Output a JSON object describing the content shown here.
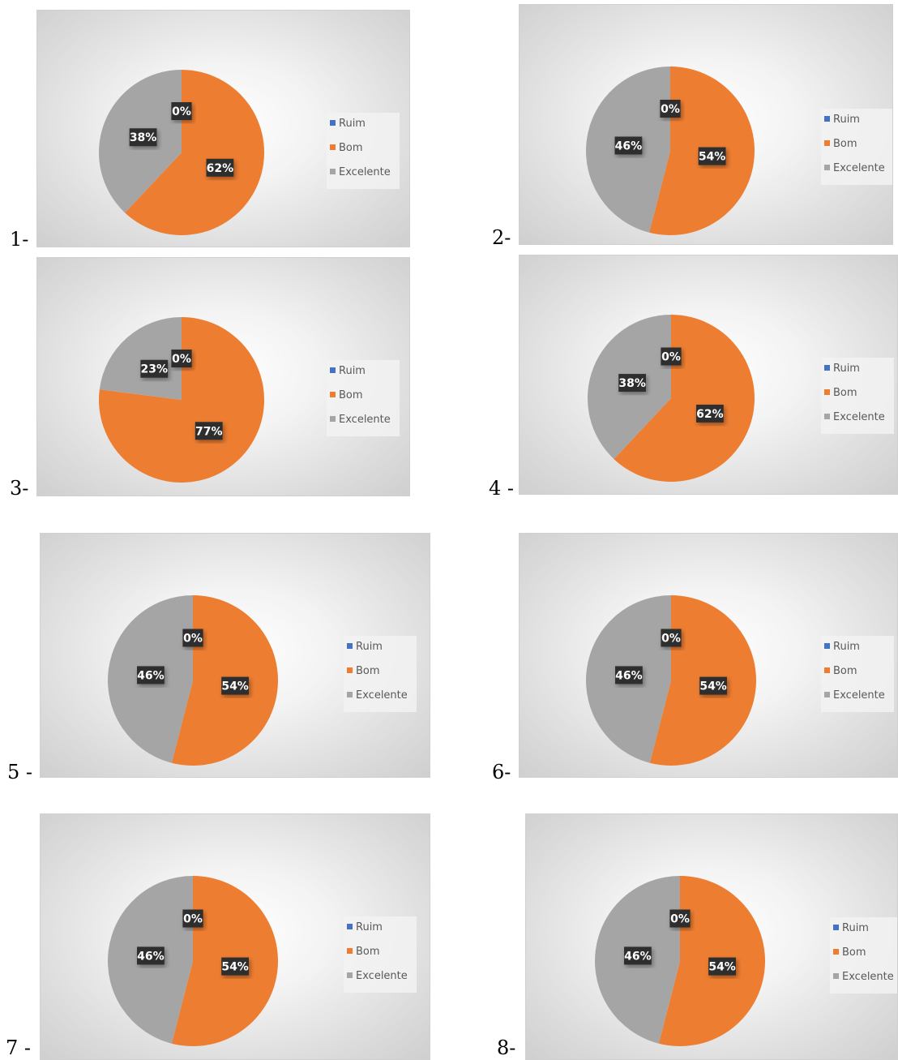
{
  "colors": {
    "Ruim": "#4472C4",
    "Bom": "#ED7D31",
    "Excelente": "#A5A5A5",
    "label_bg": "#2f2f2f"
  },
  "chart_data": [
    {
      "number_label": "1-",
      "type": "pie",
      "categories": [
        "Ruim",
        "Bom",
        "Excelente"
      ],
      "values": [
        0,
        62,
        38
      ],
      "labels": [
        "0%",
        "62%",
        "38%"
      ],
      "legend": [
        "Ruim",
        "Bom",
        "Excelente"
      ],
      "legend_position": "right"
    },
    {
      "number_label": "2-",
      "type": "pie",
      "categories": [
        "Ruim",
        "Bom",
        "Excelente"
      ],
      "values": [
        0,
        54,
        46
      ],
      "labels": [
        "0%",
        "54%",
        "46%"
      ],
      "legend": [
        "Ruim",
        "Bom",
        "Excelente"
      ],
      "legend_position": "right"
    },
    {
      "number_label": "3-",
      "type": "pie",
      "categories": [
        "Ruim",
        "Bom",
        "Excelente"
      ],
      "values": [
        0,
        77,
        23
      ],
      "labels": [
        "0%",
        "77%",
        "23%"
      ],
      "legend": [
        "Ruim",
        "Bom",
        "Excelente"
      ],
      "legend_position": "right"
    },
    {
      "number_label": "4 -",
      "type": "pie",
      "categories": [
        "Ruim",
        "Bom",
        "Excelente"
      ],
      "values": [
        0,
        62,
        38
      ],
      "labels": [
        "0%",
        "62%",
        "38%"
      ],
      "legend": [
        "Ruim",
        "Bom",
        "Excelente"
      ],
      "legend_position": "right"
    },
    {
      "number_label": "5 -",
      "type": "pie",
      "categories": [
        "Ruim",
        "Bom",
        "Excelente"
      ],
      "values": [
        0,
        54,
        46
      ],
      "labels": [
        "0%",
        "54%",
        "46%"
      ],
      "legend": [
        "Ruim",
        "Bom",
        "Excelente"
      ],
      "legend_position": "right"
    },
    {
      "number_label": "6-",
      "type": "pie",
      "categories": [
        "Ruim",
        "Bom",
        "Excelente"
      ],
      "values": [
        0,
        54,
        46
      ],
      "labels": [
        "0%",
        "54%",
        "46%"
      ],
      "legend": [
        "Ruim",
        "Bom",
        "Excelente"
      ],
      "legend_position": "right"
    },
    {
      "number_label": "7 -",
      "type": "pie",
      "categories": [
        "Ruim",
        "Bom",
        "Excelente"
      ],
      "values": [
        0,
        54,
        46
      ],
      "labels": [
        "0%",
        "54%",
        "46%"
      ],
      "legend": [
        "Ruim",
        "Bom",
        "Excelente"
      ],
      "legend_position": "right"
    },
    {
      "number_label": "8-",
      "type": "pie",
      "categories": [
        "Ruim",
        "Bom",
        "Excelente"
      ],
      "values": [
        0,
        54,
        46
      ],
      "labels": [
        "0%",
        "54%",
        "46%"
      ],
      "legend": [
        "Ruim",
        "Bom",
        "Excelente"
      ],
      "legend_position": "right"
    }
  ]
}
